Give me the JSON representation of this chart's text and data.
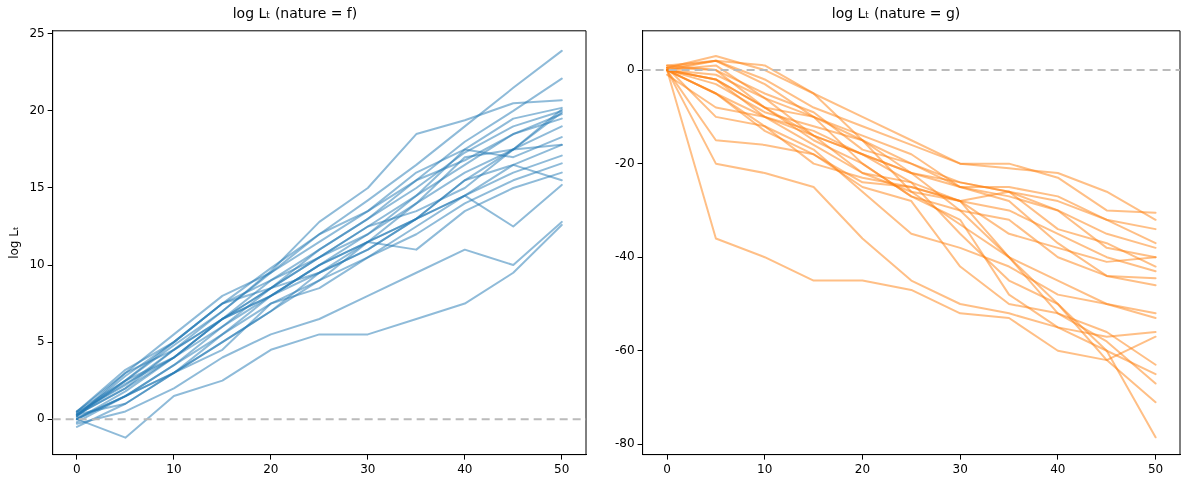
{
  "chart_data": [
    {
      "type": "line",
      "title": "log Lₜ (nature = f)",
      "ylabel": "log Lₜ",
      "x": [
        0,
        5,
        10,
        15,
        20,
        25,
        30,
        35,
        40,
        45,
        50
      ],
      "xlim": [
        -2.5,
        52.5
      ],
      "xticks": [
        0,
        10,
        20,
        30,
        40,
        50
      ],
      "ylim": [
        -2.3,
        25.2
      ],
      "yticks": [
        0,
        5,
        10,
        15,
        20,
        25
      ],
      "grid": false,
      "legend": false,
      "marker": "none",
      "line_style": "solid",
      "ref_lines": [
        {
          "axis": "y",
          "value": 0,
          "color": "#bbbbbb",
          "line_style": "dashed"
        }
      ],
      "series": [
        {
          "color": "#1f77b4",
          "values": [
            0.3,
            2.5,
            4.8,
            7,
            9.5,
            12,
            14.2,
            16.5,
            19,
            21.5,
            23.9
          ]
        },
        {
          "color": "#1f77b4",
          "values": [
            0.2,
            2.8,
            5,
            7.5,
            9.8,
            12,
            13.5,
            15.5,
            18,
            20,
            22.1
          ]
        },
        {
          "color": "#1f77b4",
          "values": [
            0.4,
            2.2,
            4.5,
            7,
            9.6,
            12.8,
            15,
            18.5,
            19.4,
            20.5,
            20.7
          ]
        },
        {
          "color": "#1f77b4",
          "values": [
            0.5,
            3,
            5.5,
            8,
            9.5,
            11.5,
            13.5,
            16,
            17.5,
            19.5,
            20.2
          ]
        },
        {
          "color": "#1f77b4",
          "values": [
            0,
            1.8,
            4,
            6.5,
            9,
            11,
            13,
            15,
            17.3,
            19,
            20
          ]
        },
        {
          "color": "#1f77b4",
          "values": [
            0.3,
            2,
            4,
            6,
            8.5,
            10.5,
            12.5,
            14.5,
            16.5,
            18.5,
            19.8
          ]
        },
        {
          "color": "#1f77b4",
          "values": [
            0.5,
            3.2,
            5,
            7.5,
            8.5,
            11,
            13,
            15.5,
            16.8,
            18.5,
            19.5
          ]
        },
        {
          "color": "#1f77b4",
          "values": [
            0,
            1.5,
            3.5,
            6,
            8,
            10,
            12,
            14,
            16,
            17.5,
            19
          ]
        },
        {
          "color": "#1f77b4",
          "values": [
            0.2,
            2.5,
            5,
            7.5,
            9,
            10.5,
            12,
            14.5,
            17.5,
            17,
            18.3
          ]
        },
        {
          "color": "#1f77b4",
          "values": [
            -0.5,
            1,
            3,
            5.5,
            8,
            10,
            11.5,
            13,
            15.5,
            16.5,
            17.8
          ]
        },
        {
          "color": "#1f77b4",
          "values": [
            0.3,
            2,
            4.5,
            6.5,
            8.5,
            9.5,
            11,
            13,
            14.5,
            16,
            17.1
          ]
        },
        {
          "color": "#1f77b4",
          "values": [
            0,
            1.5,
            3,
            5,
            7,
            9,
            10.5,
            12,
            14,
            15.5,
            16.6
          ]
        },
        {
          "color": "#1f77b4",
          "values": [
            0.4,
            2.3,
            4,
            6.5,
            8,
            9.5,
            11.5,
            11,
            13.5,
            15,
            16
          ]
        },
        {
          "color": "#1f77b4",
          "values": [
            0.1,
            1.5,
            3.5,
            5.5,
            7.5,
            8.5,
            10.5,
            12.5,
            14.5,
            12.5,
            15.2
          ]
        },
        {
          "color": "#1f77b4",
          "values": [
            -0.3,
            0.5,
            2,
            4,
            5.5,
            6.5,
            8,
            9.5,
            11,
            10,
            12.8
          ]
        },
        {
          "color": "#1f77b4",
          "values": [
            0,
            -1.2,
            1.5,
            2.5,
            4.5,
            5.5,
            5.5,
            6.5,
            7.5,
            9.5,
            12.6
          ]
        },
        {
          "color": "#1f77b4",
          "values": [
            0.5,
            2.5,
            4,
            6.5,
            8.5,
            10.5,
            12.5,
            13.5,
            15,
            17.5,
            19.9
          ]
        },
        {
          "color": "#1f77b4",
          "values": [
            0.3,
            1,
            3,
            5,
            7,
            9.5,
            11,
            13,
            15.5,
            17.5,
            20.1
          ]
        },
        {
          "color": "#1f77b4",
          "values": [
            0.2,
            3,
            4.5,
            6.5,
            8,
            10,
            11.5,
            14,
            17,
            17.5,
            17.8
          ]
        },
        {
          "color": "#1f77b4",
          "values": [
            -0.2,
            1.5,
            3,
            4.5,
            7.5,
            9,
            11.5,
            13,
            14.5,
            16.5,
            15.5
          ]
        }
      ]
    },
    {
      "type": "line",
      "title": "log Lₜ (nature = g)",
      "x": [
        0,
        5,
        10,
        15,
        20,
        25,
        30,
        35,
        40,
        45,
        50
      ],
      "xlim": [
        -2.5,
        52.5
      ],
      "xticks": [
        0,
        10,
        20,
        30,
        40,
        50
      ],
      "ylim": [
        -82.2,
        8.4
      ],
      "yticks": [
        -80,
        -60,
        -40,
        -20,
        0
      ],
      "grid": false,
      "legend": false,
      "marker": "none",
      "line_style": "solid",
      "ref_lines": [
        {
          "axis": "y",
          "value": 0,
          "color": "#bbbbbb",
          "line_style": "dashed"
        }
      ],
      "series": [
        {
          "color": "#ff7f0e",
          "values": [
            0,
            2,
            -2,
            -8,
            -12,
            -16,
            -20,
            -20,
            -23,
            -30,
            -30.5
          ]
        },
        {
          "color": "#ff7f0e",
          "values": [
            0.5,
            3,
            0,
            -5,
            -10,
            -15,
            -20,
            -21,
            -22,
            -26,
            -32
          ]
        },
        {
          "color": "#ff7f0e",
          "values": [
            0,
            -2,
            -8,
            -10,
            -15,
            -20,
            -24,
            -26,
            -28,
            -32,
            -34
          ]
        },
        {
          "color": "#ff7f0e",
          "values": [
            1,
            2,
            1,
            -5,
            -15,
            -22,
            -25,
            -25,
            -27,
            -32,
            -37
          ]
        },
        {
          "color": "#ff7f0e",
          "values": [
            0,
            -5,
            -10,
            -13,
            -18,
            -24,
            -28,
            -26,
            -30,
            -35,
            -38
          ]
        },
        {
          "color": "#ff7f0e",
          "values": [
            0.5,
            0,
            -5,
            -9,
            -17,
            -20,
            -25,
            -27,
            -30,
            -38,
            -40
          ]
        },
        {
          "color": "#ff7f0e",
          "values": [
            -1,
            -8,
            -10,
            -14,
            -18,
            -22,
            -24,
            -26,
            -34,
            -37,
            -42
          ]
        },
        {
          "color": "#ff7f0e",
          "values": [
            0,
            -3,
            -9,
            -12,
            -15,
            -26,
            -28,
            -30,
            -35,
            -40,
            -43
          ]
        },
        {
          "color": "#ff7f0e",
          "values": [
            0,
            1,
            -6,
            -14,
            -18,
            -22,
            -30,
            -32,
            -40,
            -44,
            -46
          ]
        },
        {
          "color": "#ff7f0e",
          "values": [
            0,
            -15,
            -16,
            -18,
            -24,
            -25,
            -28,
            -40,
            -45,
            -50,
            -52
          ]
        },
        {
          "color": "#ff7f0e",
          "values": [
            0.5,
            -10,
            -12,
            -17,
            -26,
            -35,
            -38,
            -42,
            -48,
            -50,
            -53
          ]
        },
        {
          "color": "#ff7f0e",
          "values": [
            0,
            -20,
            -22,
            -25,
            -36,
            -45,
            -50,
            -52,
            -55,
            -57,
            -56
          ]
        },
        {
          "color": "#ff7f0e",
          "values": [
            0,
            -36,
            -40,
            -45,
            -45,
            -47,
            -52,
            -53,
            -60,
            -62,
            -57
          ]
        },
        {
          "color": "#ff7f0e",
          "values": [
            0,
            -5,
            -13,
            -18,
            -25,
            -28,
            -42,
            -50,
            -52,
            -56,
            -63
          ]
        },
        {
          "color": "#ff7f0e",
          "values": [
            1,
            0,
            -8,
            -15,
            -20,
            -27,
            -32,
            -48,
            -55,
            -60,
            -65
          ]
        },
        {
          "color": "#ff7f0e",
          "values": [
            0,
            -2,
            -10,
            -16,
            -22,
            -26,
            -33,
            -40,
            -52,
            -58,
            -67
          ]
        },
        {
          "color": "#ff7f0e",
          "values": [
            0.5,
            2,
            -3,
            -10,
            -20,
            -27,
            -30,
            -40,
            -50,
            -62,
            -71
          ]
        },
        {
          "color": "#ff7f0e",
          "values": [
            0,
            -2,
            -8,
            -14,
            -22,
            -24,
            -35,
            -45,
            -50,
            -60,
            -78.5
          ]
        },
        {
          "color": "#ff7f0e",
          "values": [
            0,
            -5,
            -12,
            -20,
            -23,
            -25,
            -28,
            -35,
            -38,
            -41,
            -40
          ]
        },
        {
          "color": "#ff7f0e",
          "values": [
            0,
            -1,
            -6,
            -10,
            -14,
            -18,
            -25,
            -28,
            -37,
            -44,
            -44.5
          ]
        }
      ]
    }
  ]
}
